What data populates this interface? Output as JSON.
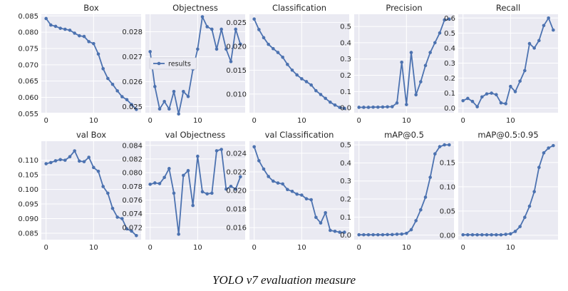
{
  "caption": "YOLO v7 evaluation measure",
  "legend_label": "results",
  "colors": {
    "line": "#4c72b0",
    "panel_bg": "#eaeaf2",
    "grid": "#ffffff",
    "text": "#262626"
  },
  "chart_data": [
    {
      "type": "line",
      "title": "Box",
      "xlim": [
        -1,
        20
      ],
      "ylim": [
        0.0553,
        0.0855
      ],
      "yticks": [
        "0.055",
        "0.060",
        "0.065",
        "0.070",
        "0.075",
        "0.080",
        "0.085"
      ],
      "xticks": [
        "0",
        "10"
      ],
      "x": [
        0,
        1,
        2,
        3,
        4,
        5,
        6,
        7,
        8,
        9,
        10,
        11,
        12,
        13,
        14,
        15,
        16,
        17,
        18,
        19
      ],
      "values": [
        0.0842,
        0.0822,
        0.0818,
        0.0812,
        0.0809,
        0.0806,
        0.0797,
        0.0789,
        0.0787,
        0.0771,
        0.0765,
        0.0733,
        0.0688,
        0.0658,
        0.064,
        0.062,
        0.0602,
        0.0593,
        0.0578,
        0.0563
      ]
    },
    {
      "type": "line",
      "title": "Objectness",
      "xlim": [
        -1,
        20
      ],
      "ylim": [
        0.02475,
        0.0287
      ],
      "yticks": [
        "0.025",
        "0.026",
        "0.027",
        "0.028"
      ],
      "xticks": [
        "0",
        "10"
      ],
      "x": [
        0,
        1,
        2,
        3,
        4,
        5,
        6,
        7,
        8,
        9,
        10,
        11,
        12,
        13,
        14,
        15,
        16,
        17,
        18,
        19
      ],
      "values": [
        0.0272,
        0.0258,
        0.0249,
        0.0252,
        0.0249,
        0.0256,
        0.0247,
        0.0256,
        0.0254,
        0.0265,
        0.0273,
        0.0286,
        0.0282,
        0.0281,
        0.0273,
        0.0281,
        0.0273,
        0.0268,
        0.0281,
        0.0275
      ],
      "legend": true
    },
    {
      "type": "line",
      "title": "Classification",
      "xlim": [
        -1,
        20
      ],
      "ylim": [
        0.0061,
        0.0267
      ],
      "yticks": [
        "0.010",
        "0.015",
        "0.020",
        "0.025"
      ],
      "xticks": [
        "0",
        "10"
      ],
      "x": [
        0,
        1,
        2,
        3,
        4,
        5,
        6,
        7,
        8,
        9,
        10,
        11,
        12,
        13,
        14,
        15,
        16,
        17,
        18,
        19
      ],
      "values": [
        0.0257,
        0.0235,
        0.0218,
        0.0204,
        0.0195,
        0.0187,
        0.0177,
        0.0162,
        0.015,
        0.014,
        0.0132,
        0.0126,
        0.0119,
        0.0107,
        0.0099,
        0.0091,
        0.0083,
        0.0077,
        0.0072,
        0.007
      ]
    },
    {
      "type": "line",
      "title": "Precision",
      "xlim": [
        -1,
        20
      ],
      "ylim": [
        -0.03,
        0.575
      ],
      "yticks": [
        "0.0",
        "0.1",
        "0.2",
        "0.3",
        "0.4",
        "0.5"
      ],
      "xticks": [
        "0",
        "10"
      ],
      "x": [
        0,
        1,
        2,
        3,
        4,
        5,
        6,
        7,
        8,
        9,
        10,
        11,
        12,
        13,
        14,
        15,
        16,
        17,
        18,
        19
      ],
      "values": [
        0.003,
        0.003,
        0.003,
        0.004,
        0.004,
        0.005,
        0.006,
        0.007,
        0.03,
        0.28,
        0.02,
        0.34,
        0.08,
        0.16,
        0.26,
        0.34,
        0.4,
        0.46,
        0.54,
        0.545
      ]
    },
    {
      "type": "line",
      "title": "Recall",
      "xlim": [
        -1,
        20
      ],
      "ylim": [
        -0.03,
        0.625
      ],
      "yticks": [
        "0.0",
        "0.1",
        "0.2",
        "0.3",
        "0.4",
        "0.5",
        "0.6"
      ],
      "xticks": [
        "0",
        "10"
      ],
      "x": [
        0,
        1,
        2,
        3,
        4,
        5,
        6,
        7,
        8,
        9,
        10,
        11,
        12,
        13,
        14,
        15,
        16,
        17,
        18,
        19
      ],
      "values": [
        0.05,
        0.065,
        0.045,
        0.01,
        0.075,
        0.095,
        0.1,
        0.09,
        0.035,
        0.03,
        0.145,
        0.11,
        0.18,
        0.25,
        0.43,
        0.4,
        0.45,
        0.55,
        0.6,
        0.52
      ]
    },
    {
      "type": "line",
      "title": "val Box",
      "xlim": [
        -1,
        20
      ],
      "ylim": [
        0.0828,
        0.1165
      ],
      "yticks": [
        "0.085",
        "0.090",
        "0.095",
        "0.100",
        "0.105",
        "0.110"
      ],
      "xticks": [
        "0",
        "10"
      ],
      "x": [
        0,
        1,
        2,
        3,
        4,
        5,
        6,
        7,
        8,
        9,
        10,
        11,
        12,
        13,
        14,
        15,
        16,
        17,
        18,
        19
      ],
      "values": [
        0.1088,
        0.1092,
        0.1098,
        0.1102,
        0.11,
        0.1112,
        0.1132,
        0.1097,
        0.1095,
        0.111,
        0.1075,
        0.1062,
        0.101,
        0.0987,
        0.0935,
        0.0905,
        0.09,
        0.0865,
        0.0857,
        0.0842
      ]
    },
    {
      "type": "line",
      "title": "val Objectness",
      "xlim": [
        -1,
        20
      ],
      "ylim": [
        0.0702,
        0.0846
      ],
      "yticks": [
        "0.072",
        "0.074",
        "0.076",
        "0.078",
        "0.080",
        "0.082",
        "0.084"
      ],
      "xticks": [
        "0",
        "10"
      ],
      "x": [
        0,
        1,
        2,
        3,
        4,
        5,
        6,
        7,
        8,
        9,
        10,
        11,
        12,
        13,
        14,
        15,
        16,
        17,
        18,
        19
      ],
      "values": [
        0.0783,
        0.0785,
        0.0784,
        0.0793,
        0.0806,
        0.077,
        0.071,
        0.0796,
        0.0803,
        0.0752,
        0.0824,
        0.0772,
        0.0769,
        0.077,
        0.0832,
        0.0834,
        0.0776,
        0.078,
        0.0776,
        0.0794
      ]
    },
    {
      "type": "line",
      "title": "val Classification",
      "xlim": [
        -1,
        20
      ],
      "ylim": [
        0.0147,
        0.0253
      ],
      "yticks": [
        "0.016",
        "0.018",
        "0.020",
        "0.022",
        "0.024"
      ],
      "xticks": [
        "0",
        "10"
      ],
      "x": [
        0,
        1,
        2,
        3,
        4,
        5,
        6,
        7,
        8,
        9,
        10,
        11,
        12,
        13,
        14,
        15,
        16,
        17,
        18,
        19
      ],
      "values": [
        0.0247,
        0.0232,
        0.0223,
        0.0215,
        0.021,
        0.0208,
        0.0207,
        0.0201,
        0.0199,
        0.0196,
        0.0195,
        0.0191,
        0.019,
        0.0171,
        0.0165,
        0.0176,
        0.0157,
        0.0156,
        0.0155,
        0.0155
      ]
    },
    {
      "type": "line",
      "title": "mAP@0.5",
      "xlim": [
        -1,
        20
      ],
      "ylim": [
        -0.025,
        0.52
      ],
      "yticks": [
        "0.0",
        "0.1",
        "0.2",
        "0.3",
        "0.4",
        "0.5"
      ],
      "xticks": [
        "0",
        "10"
      ],
      "x": [
        0,
        1,
        2,
        3,
        4,
        5,
        6,
        7,
        8,
        9,
        10,
        11,
        12,
        13,
        14,
        15,
        16,
        17,
        18,
        19
      ],
      "values": [
        0.002,
        0.002,
        0.002,
        0.002,
        0.002,
        0.002,
        0.003,
        0.003,
        0.005,
        0.006,
        0.01,
        0.03,
        0.08,
        0.14,
        0.21,
        0.32,
        0.45,
        0.49,
        0.5,
        0.5
      ]
    },
    {
      "type": "line",
      "title": "mAP@0.5:0.95",
      "xlim": [
        -1,
        20
      ],
      "ylim": [
        -0.009,
        0.194
      ],
      "yticks": [
        "0.00",
        "0.05",
        "0.10",
        "0.15"
      ],
      "xticks": [
        "0",
        "10"
      ],
      "x": [
        0,
        1,
        2,
        3,
        4,
        5,
        6,
        7,
        8,
        9,
        10,
        11,
        12,
        13,
        14,
        15,
        16,
        17,
        18,
        19
      ],
      "values": [
        0.001,
        0.001,
        0.001,
        0.001,
        0.001,
        0.001,
        0.001,
        0.001,
        0.001,
        0.002,
        0.003,
        0.008,
        0.018,
        0.037,
        0.06,
        0.09,
        0.14,
        0.17,
        0.18,
        0.185
      ]
    }
  ]
}
